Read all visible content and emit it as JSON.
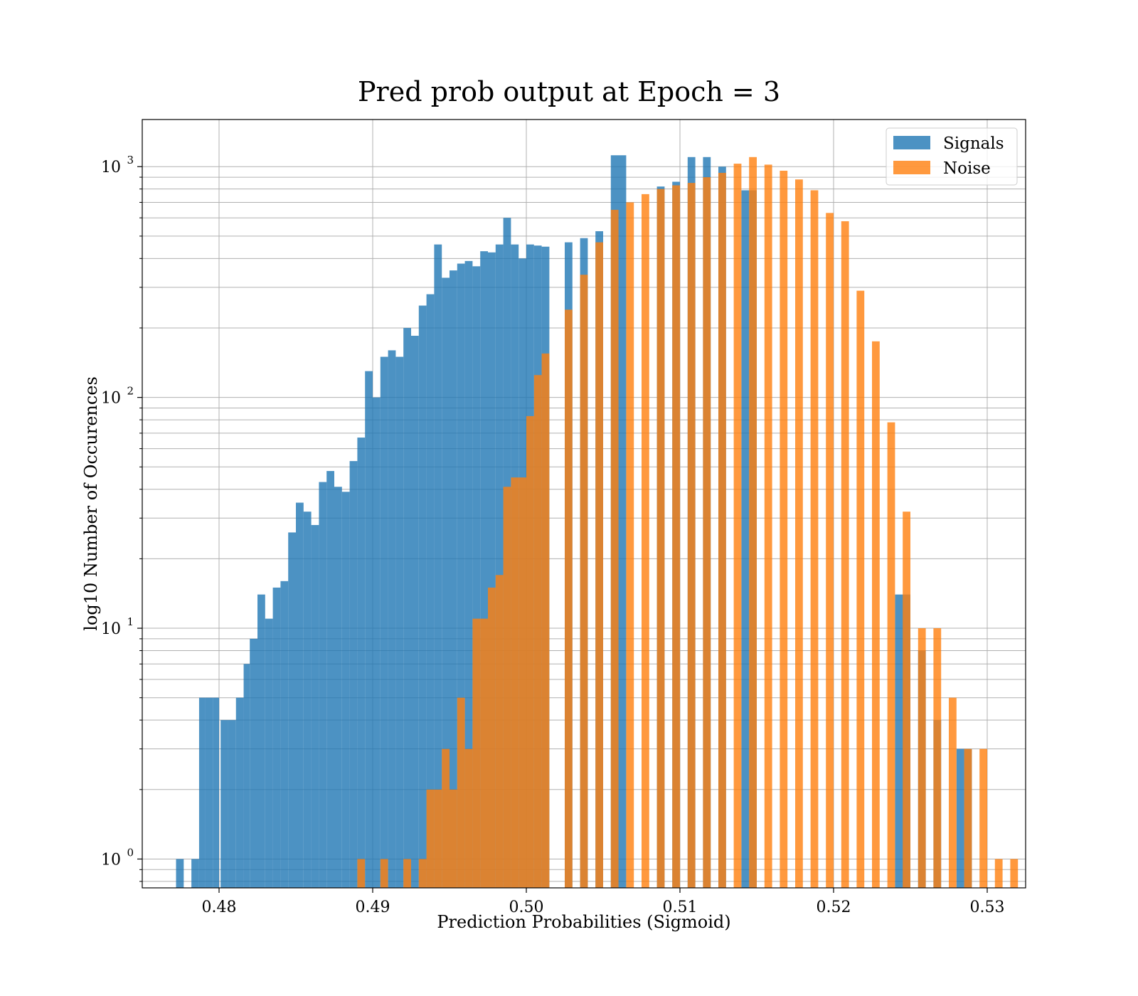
{
  "chart_data": {
    "type": "bar",
    "title": "Pred prob output at Epoch = 3",
    "xlabel": "Prediction Probabilities (Sigmoid)",
    "ylabel": "log10 Number of Occurences",
    "xlim": [
      0.475,
      0.5325
    ],
    "ylim": [
      0.75,
      1600
    ],
    "yscale": "log",
    "grid": true,
    "legend_position": "top-right",
    "x_ticks": [
      "0.48",
      "0.49",
      "0.50",
      "0.51",
      "0.52",
      "0.53"
    ],
    "x_tick_values": [
      0.48,
      0.49,
      0.5,
      0.51,
      0.52,
      0.53
    ],
    "y_ticks": [
      {
        "value": 1,
        "base": "10",
        "exp": "0"
      },
      {
        "value": 10,
        "base": "10",
        "exp": "1"
      },
      {
        "value": 100,
        "base": "10",
        "exp": "2"
      },
      {
        "value": 1000,
        "base": "10",
        "exp": "3"
      }
    ],
    "series": [
      {
        "name": "Signals",
        "color": "#1f77b4",
        "bins": [
          [
            0.4772,
            0.4777,
            1
          ],
          [
            0.4782,
            0.4787,
            1
          ],
          [
            0.4787,
            0.4791,
            5
          ],
          [
            0.4791,
            0.4796,
            5
          ],
          [
            0.4796,
            0.48,
            5
          ],
          [
            0.4801,
            0.4806,
            4
          ],
          [
            0.4806,
            0.4811,
            4
          ],
          [
            0.4811,
            0.4816,
            5
          ],
          [
            0.4816,
            0.482,
            7
          ],
          [
            0.482,
            0.4825,
            9
          ],
          [
            0.4825,
            0.483,
            14
          ],
          [
            0.483,
            0.4835,
            11
          ],
          [
            0.4835,
            0.484,
            15
          ],
          [
            0.484,
            0.4845,
            16
          ],
          [
            0.4845,
            0.485,
            26
          ],
          [
            0.485,
            0.4855,
            35
          ],
          [
            0.4855,
            0.486,
            32
          ],
          [
            0.486,
            0.4865,
            28
          ],
          [
            0.4865,
            0.487,
            43
          ],
          [
            0.487,
            0.4875,
            48
          ],
          [
            0.4875,
            0.488,
            41
          ],
          [
            0.488,
            0.4885,
            39
          ],
          [
            0.4885,
            0.489,
            53
          ],
          [
            0.489,
            0.4895,
            67
          ],
          [
            0.4895,
            0.49,
            130
          ],
          [
            0.49,
            0.4905,
            100
          ],
          [
            0.4905,
            0.491,
            150
          ],
          [
            0.491,
            0.4915,
            160
          ],
          [
            0.4915,
            0.492,
            150
          ],
          [
            0.492,
            0.4925,
            200
          ],
          [
            0.4925,
            0.493,
            185
          ],
          [
            0.493,
            0.4935,
            250
          ],
          [
            0.4935,
            0.494,
            280
          ],
          [
            0.494,
            0.4945,
            460
          ],
          [
            0.4945,
            0.495,
            330
          ],
          [
            0.495,
            0.4955,
            355
          ],
          [
            0.4955,
            0.496,
            380
          ],
          [
            0.496,
            0.4965,
            390
          ],
          [
            0.4965,
            0.497,
            370
          ],
          [
            0.497,
            0.4975,
            430
          ],
          [
            0.4975,
            0.498,
            425
          ],
          [
            0.498,
            0.4985,
            460
          ],
          [
            0.4985,
            0.499,
            600
          ],
          [
            0.499,
            0.4995,
            460
          ],
          [
            0.4995,
            0.5,
            400
          ],
          [
            0.5,
            0.5005,
            460
          ],
          [
            0.5005,
            0.501,
            455
          ],
          [
            0.501,
            0.5015,
            450
          ],
          [
            0.5025,
            0.503,
            470
          ],
          [
            0.5035,
            0.504,
            490
          ],
          [
            0.5045,
            0.505,
            525
          ],
          [
            0.5055,
            0.5065,
            1120
          ],
          [
            0.5085,
            0.509,
            820
          ],
          [
            0.5095,
            0.51,
            860
          ],
          [
            0.5105,
            0.511,
            1100
          ],
          [
            0.5115,
            0.512,
            1100
          ],
          [
            0.5125,
            0.513,
            1000
          ],
          [
            0.514,
            0.5145,
            790
          ],
          [
            0.5145,
            0.515,
            790
          ],
          [
            0.524,
            0.525,
            14
          ],
          [
            0.5255,
            0.526,
            8
          ],
          [
            0.5265,
            0.527,
            4
          ],
          [
            0.528,
            0.5285,
            3
          ],
          [
            0.5285,
            0.529,
            3
          ]
        ]
      },
      {
        "name": "Noise",
        "color": "#ff7f0e",
        "bins": [
          [
            0.489,
            0.4895,
            1
          ],
          [
            0.4905,
            0.491,
            1
          ],
          [
            0.492,
            0.4925,
            1
          ],
          [
            0.493,
            0.4935,
            1
          ],
          [
            0.4935,
            0.494,
            2
          ],
          [
            0.494,
            0.4945,
            2
          ],
          [
            0.4945,
            0.495,
            3
          ],
          [
            0.495,
            0.4955,
            2
          ],
          [
            0.4955,
            0.496,
            5
          ],
          [
            0.496,
            0.4965,
            3
          ],
          [
            0.4965,
            0.497,
            11
          ],
          [
            0.497,
            0.4975,
            11
          ],
          [
            0.4975,
            0.498,
            15
          ],
          [
            0.498,
            0.4985,
            17
          ],
          [
            0.4985,
            0.499,
            41
          ],
          [
            0.499,
            0.4995,
            45
          ],
          [
            0.4995,
            0.5,
            45
          ],
          [
            0.5,
            0.5005,
            83
          ],
          [
            0.5005,
            0.501,
            125
          ],
          [
            0.501,
            0.5015,
            155
          ],
          [
            0.5025,
            0.503,
            240
          ],
          [
            0.5035,
            0.504,
            340
          ],
          [
            0.5045,
            0.505,
            470
          ],
          [
            0.5055,
            0.506,
            650
          ],
          [
            0.5065,
            0.507,
            700
          ],
          [
            0.5075,
            0.508,
            760
          ],
          [
            0.5085,
            0.509,
            800
          ],
          [
            0.5095,
            0.51,
            830
          ],
          [
            0.5105,
            0.511,
            850
          ],
          [
            0.5115,
            0.512,
            900
          ],
          [
            0.5125,
            0.513,
            940
          ],
          [
            0.5135,
            0.514,
            1030
          ],
          [
            0.5145,
            0.515,
            1100
          ],
          [
            0.5155,
            0.516,
            1020
          ],
          [
            0.5165,
            0.517,
            960
          ],
          [
            0.5175,
            0.518,
            880
          ],
          [
            0.5185,
            0.519,
            790
          ],
          [
            0.5195,
            0.52,
            630
          ],
          [
            0.5205,
            0.521,
            580
          ],
          [
            0.5215,
            0.522,
            290
          ],
          [
            0.5225,
            0.523,
            175
          ],
          [
            0.5235,
            0.524,
            78
          ],
          [
            0.5245,
            0.525,
            32
          ],
          [
            0.5255,
            0.526,
            10
          ],
          [
            0.5265,
            0.527,
            10
          ],
          [
            0.5275,
            0.528,
            5
          ],
          [
            0.5285,
            0.529,
            3
          ],
          [
            0.5295,
            0.53,
            3
          ],
          [
            0.5305,
            0.531,
            1
          ],
          [
            0.5315,
            0.532,
            1
          ]
        ]
      }
    ]
  }
}
